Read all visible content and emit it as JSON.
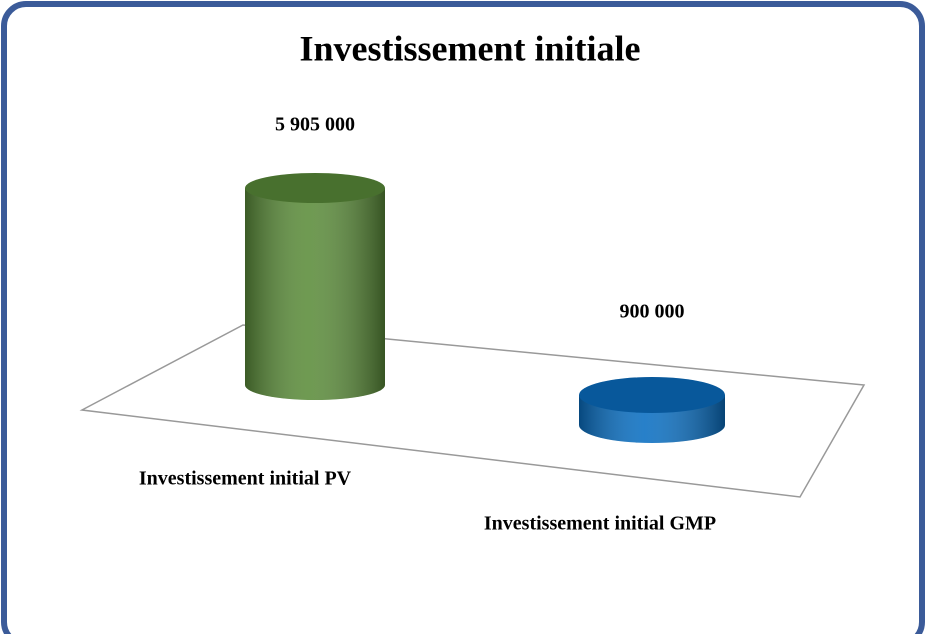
{
  "chart_data": {
    "type": "bar3d",
    "title": "Investissement initiale",
    "categories": [
      "Investissement initial PV",
      "Investissement initial GMP"
    ],
    "values": [
      5905000,
      900000
    ],
    "value_labels": [
      "5 905 000",
      "900 000"
    ],
    "colors": [
      "#5b8c3a",
      "#0a6fc2"
    ]
  }
}
